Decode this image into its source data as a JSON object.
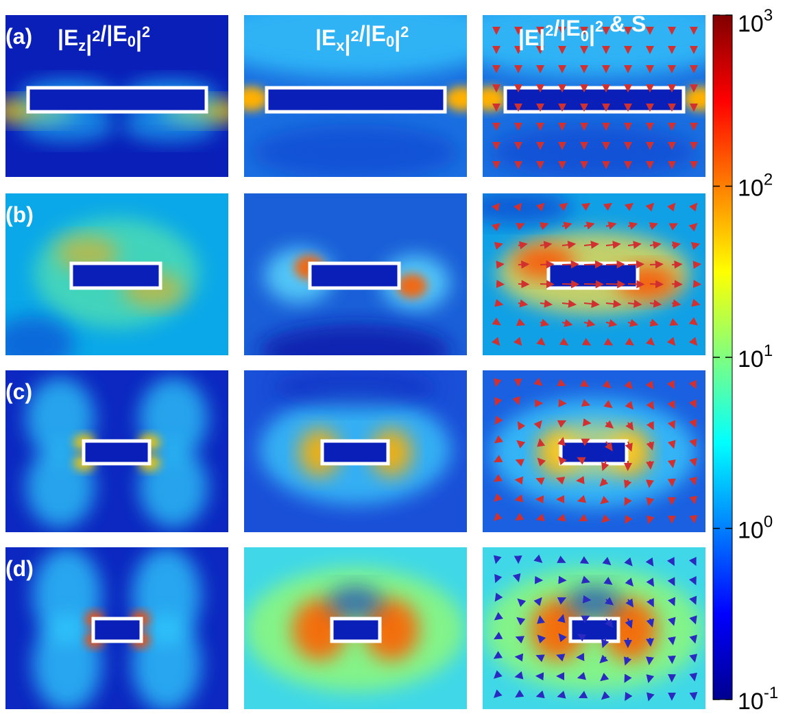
{
  "chart_data": {
    "type": "heatmap",
    "column_titles": [
      {
        "base": "|E",
        "sub": "z",
        "mid": "|",
        "sup1": "2",
        "slash": "/|E",
        "sub2": "0",
        "end": "|",
        "sup2": "2",
        "tail": ""
      },
      {
        "base": "|E",
        "sub": "x",
        "mid": "|",
        "sup1": "2",
        "slash": "/|E",
        "sub2": "0",
        "end": "|",
        "sup2": "2",
        "tail": ""
      },
      {
        "base": "|E",
        "sub": "",
        "mid": "|",
        "sup1": "2",
        "slash": "/|E",
        "sub2": "0",
        "end": "|",
        "sup2": "2",
        "tail": " & S"
      }
    ],
    "row_labels": [
      "(a)",
      "(b)",
      "(c)",
      "(d)"
    ],
    "colorbar": {
      "scale": "log",
      "range": [
        0.1,
        1000
      ],
      "colormap": "jet",
      "ticks": [
        {
          "base": "10",
          "exp": "3"
        },
        {
          "base": "10",
          "exp": "2"
        },
        {
          "base": "10",
          "exp": "1"
        },
        {
          "base": "10",
          "exp": "0"
        },
        {
          "base": "10",
          "exp": "-1"
        }
      ]
    },
    "vector_colors": [
      "#d03030",
      "#d03030",
      "#d03030",
      "#2a2ac0"
    ],
    "rectangle_color": "#ffffff"
  }
}
